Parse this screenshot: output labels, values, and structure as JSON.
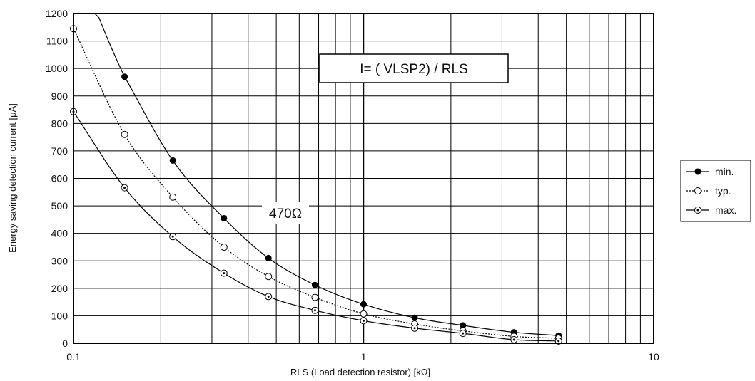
{
  "chart_data": {
    "type": "line",
    "xscale": "log",
    "xlim": [
      0.1,
      10
    ],
    "ylim": [
      0,
      1200
    ],
    "xticks": [
      0.1,
      1,
      10
    ],
    "xtick_labels": [
      "0.1",
      "1",
      "10"
    ],
    "yticks": [
      0,
      100,
      200,
      300,
      400,
      500,
      600,
      700,
      800,
      900,
      1000,
      1100,
      1200
    ],
    "ytick_labels": [
      "0",
      "100",
      "200",
      "300",
      "400",
      "500",
      "600",
      "700",
      "800",
      "900",
      "1000",
      "1100",
      "1200"
    ],
    "xlabel": "RLS (Load detection resistor)    [kΩ]",
    "ylabel": "Energy saving detection current [μA]",
    "grid": true,
    "legend": "right",
    "series": [
      {
        "name": "min.",
        "marker": "filled-circle",
        "line": "solid",
        "x": [
          0.15,
          0.22,
          0.33,
          0.47,
          0.68,
          1.0,
          1.5,
          2.2,
          3.3,
          4.7
        ],
        "y": [
          970,
          665,
          455,
          310,
          212,
          142,
          93,
          65,
          40,
          28
        ]
      },
      {
        "name": "typ.",
        "marker": "open-circle",
        "line": "dotted",
        "x": [
          0.1,
          0.15,
          0.22,
          0.33,
          0.47,
          0.68,
          1.0,
          1.5,
          2.2,
          3.3,
          4.7
        ],
        "y": [
          1145,
          760,
          532,
          350,
          243,
          167,
          107,
          70,
          45,
          25,
          18
        ]
      },
      {
        "name": "max.",
        "marker": "dotted-circle",
        "line": "solid",
        "x": [
          0.1,
          0.15,
          0.22,
          0.33,
          0.47,
          0.68,
          1.0,
          1.5,
          2.2,
          3.3,
          4.7
        ],
        "y": [
          843,
          566,
          388,
          255,
          170,
          120,
          82,
          55,
          36,
          13,
          8
        ]
      }
    ],
    "annotations": [
      {
        "text": "I= (     VLSP2) / RLS"
      },
      {
        "text": "470Ω"
      }
    ],
    "colors": {
      "line": "#000000",
      "grid": "#000000",
      "background": "#ffffff"
    }
  }
}
